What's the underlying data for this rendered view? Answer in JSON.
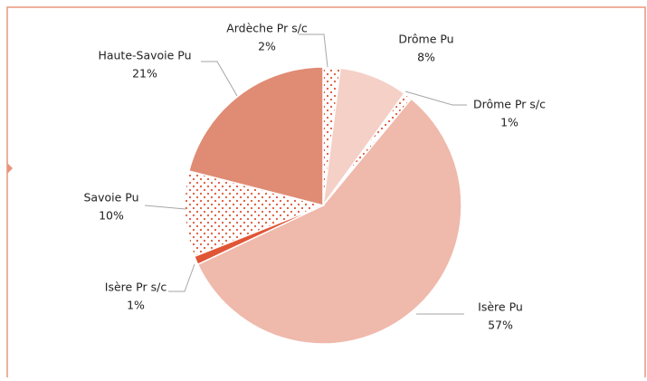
{
  "chart_data": {
    "type": "pie",
    "categories": [
      "Ardèche Pr s/c",
      "Drôme Pu",
      "Drôme Pr s/c",
      "Isère Pu",
      "Isère Pr s/c",
      "Savoie Pu",
      "Haute-Savoie Pu"
    ],
    "values": [
      2,
      8,
      1,
      57,
      1,
      10,
      21
    ],
    "value_labels": [
      "2%",
      "8%",
      "1%",
      "57%",
      "1%",
      "10%",
      "21%"
    ],
    "colors": [
      "dots",
      "#f4d0c7",
      "dots",
      "#efb9ab",
      "#e05536",
      "dots",
      "#e08b74"
    ]
  }
}
